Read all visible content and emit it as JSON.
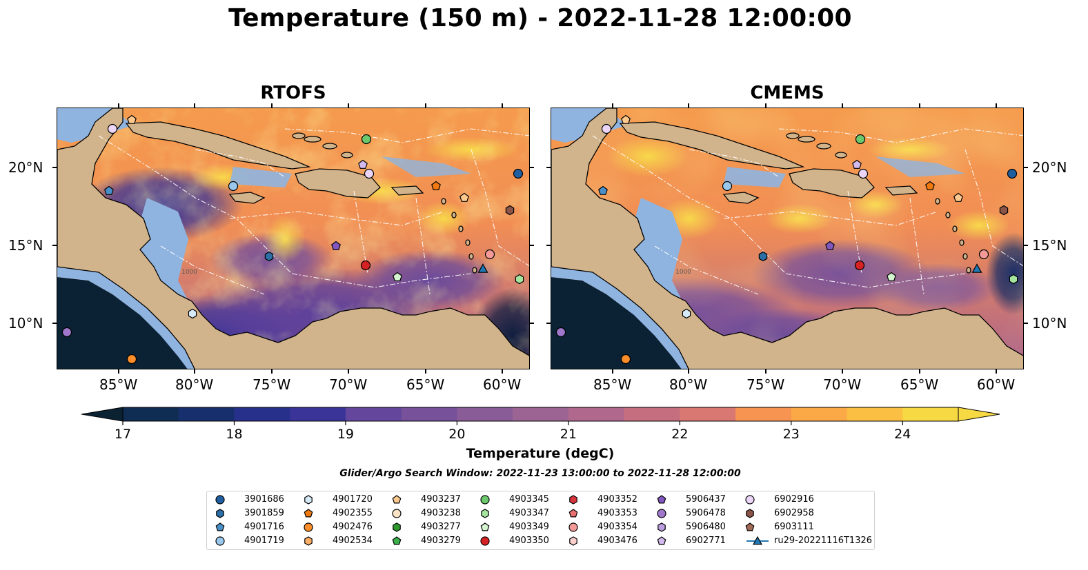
{
  "title": "Temperature (150 m) - 2022-11-28 12:00:00",
  "panels": [
    {
      "title": "RTOFS"
    },
    {
      "title": "CMEMS"
    }
  ],
  "axes": {
    "lon_ticks": [
      "85°W",
      "80°W",
      "75°W",
      "70°W",
      "65°W",
      "60°W"
    ],
    "lat_ticks": [
      "20°N",
      "15°N",
      "10°N"
    ]
  },
  "colorbar": {
    "title": "Temperature (degC)",
    "ticks": [
      "17",
      "18",
      "19",
      "20",
      "21",
      "22",
      "23",
      "24"
    ],
    "range": [
      17,
      24.5
    ],
    "step": 0.5,
    "colors": [
      "#0b2233",
      "#0f2c52",
      "#172f6d",
      "#27308a",
      "#3a3498",
      "#523c9c",
      "#64479c",
      "#77519a",
      "#895c97",
      "#9c6493",
      "#b0698c",
      "#c56e80",
      "#d97772",
      "#ec8462",
      "#f79451",
      "#fba847",
      "#fbbf44",
      "#f7d943"
    ],
    "extend": "both"
  },
  "contour_labels": [
    "1000"
  ],
  "search_window": "Glider/Argo Search Window: 2022-11-23 13:00:00 to 2022-11-28 12:00:00",
  "legend": [
    {
      "label": "3901686",
      "marker": "circle",
      "color": "#1f5f9f"
    },
    {
      "label": "3901859",
      "marker": "hexagon",
      "color": "#2c6ea6"
    },
    {
      "label": "4901716",
      "marker": "pentagon",
      "color": "#4a90c8"
    },
    {
      "label": "4901719",
      "marker": "circle",
      "color": "#9ac8ec"
    },
    {
      "label": "4901720",
      "marker": "hexagon",
      "color": "#d6e9f7"
    },
    {
      "label": "4902355",
      "marker": "pentagon",
      "color": "#f07a10"
    },
    {
      "label": "4902476",
      "marker": "circle",
      "color": "#fb8d2a"
    },
    {
      "label": "4902534",
      "marker": "hexagon",
      "color": "#fdae67"
    },
    {
      "label": "4903237",
      "marker": "pentagon",
      "color": "#fdc98e"
    },
    {
      "label": "4903238",
      "marker": "circle",
      "color": "#fde3c6"
    },
    {
      "label": "4903277",
      "marker": "hexagon",
      "color": "#2e9a2e"
    },
    {
      "label": "4903279",
      "marker": "pentagon",
      "color": "#3bb14a"
    },
    {
      "label": "4903345",
      "marker": "circle",
      "color": "#6cc86c"
    },
    {
      "label": "4903347",
      "marker": "hexagon",
      "color": "#a5e5a0"
    },
    {
      "label": "4903349",
      "marker": "pentagon",
      "color": "#d4f5cf"
    },
    {
      "label": "4903350",
      "marker": "circle",
      "color": "#d62222"
    },
    {
      "label": "4903352",
      "marker": "hexagon",
      "color": "#d8363c"
    },
    {
      "label": "4903353",
      "marker": "pentagon",
      "color": "#e87272"
    },
    {
      "label": "4903354",
      "marker": "circle",
      "color": "#f39a97"
    },
    {
      "label": "4903476",
      "marker": "hexagon",
      "color": "#fbcfcb"
    },
    {
      "label": "5906437",
      "marker": "pentagon",
      "color": "#8258c0"
    },
    {
      "label": "5906478",
      "marker": "circle",
      "color": "#9f78cc"
    },
    {
      "label": "5906480",
      "marker": "hexagon",
      "color": "#bc9ee0"
    },
    {
      "label": "6902771",
      "marker": "pentagon",
      "color": "#d2b9ee"
    },
    {
      "label": "6902916",
      "marker": "circle",
      "color": "#ecd6f8"
    },
    {
      "label": "6902958",
      "marker": "hexagon",
      "color": "#8a5448"
    },
    {
      "label": "6903111",
      "marker": "pentagon",
      "color": "#a06a55"
    },
    {
      "label": "ru29-20221116T1326",
      "marker": "triangle-line",
      "color": "#1f77b4"
    }
  ],
  "map_colors": {
    "land": "#d2b48c",
    "shelf": "#8fb4e0",
    "deep": "#0a2233"
  }
}
